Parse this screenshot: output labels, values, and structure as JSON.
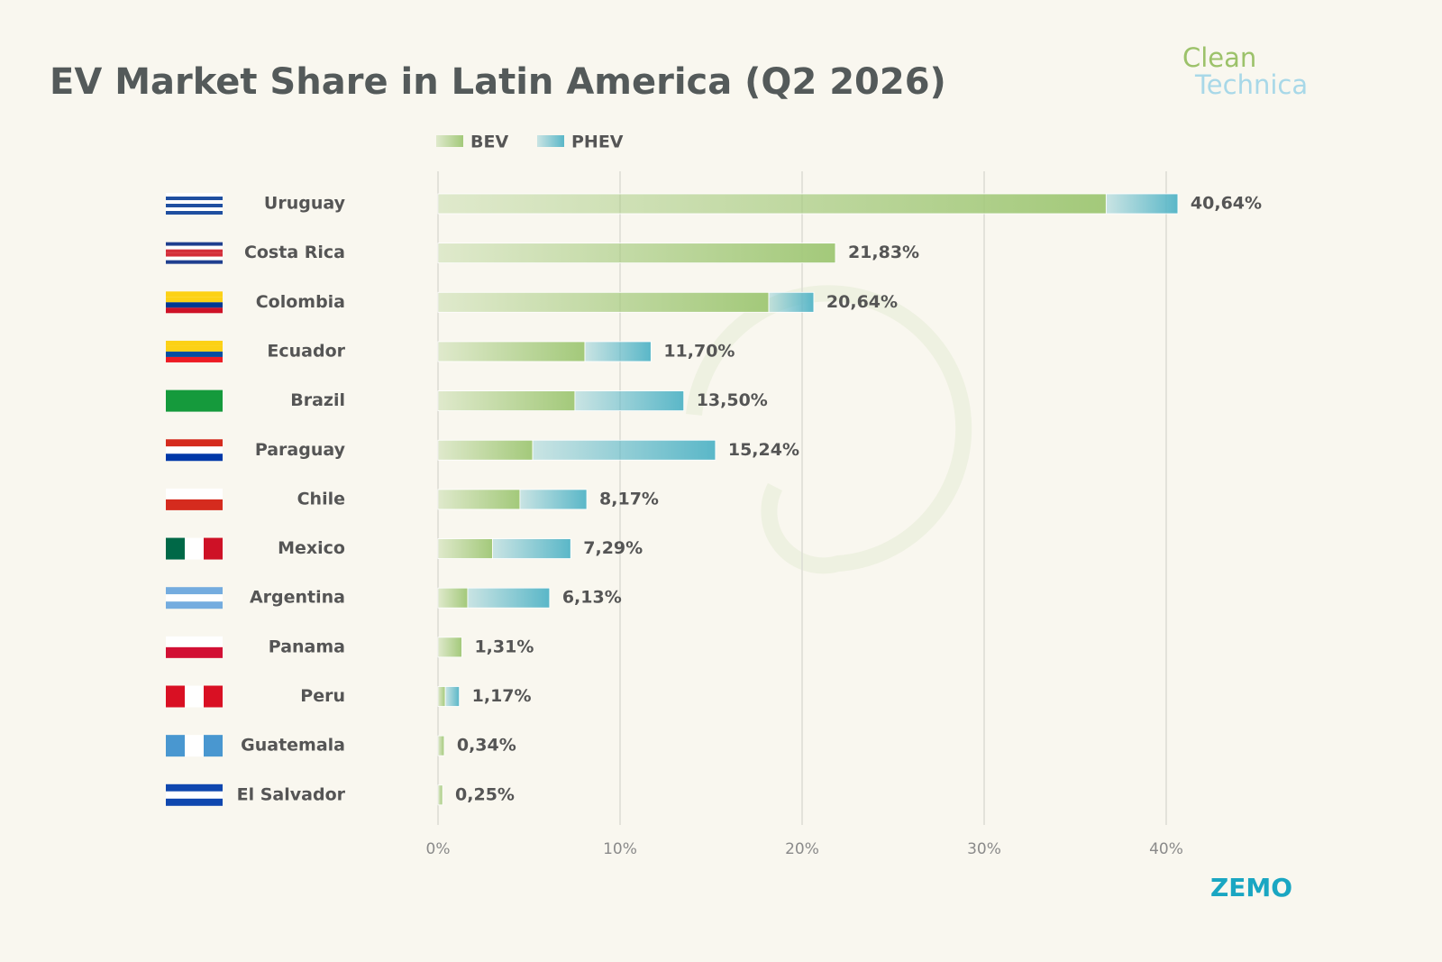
{
  "chart_data": {
    "type": "stacked-bar-horizontal",
    "title": "EV Market Share in Latin America (Q2 2026)",
    "brand": [
      "Clean",
      "Technica"
    ],
    "source_logo": "ZEMO",
    "categories": [
      "Uruguay",
      "Costa Rica",
      "Colombia",
      "Ecuador",
      "Brazil",
      "Paraguay",
      "Chile",
      "Mexico",
      "Argentina",
      "Panama",
      "Peru",
      "Guatemala",
      "El Salvador"
    ],
    "series": [
      {
        "name": "BEV",
        "color": "#a3c97a",
        "values": [
          36.7,
          21.83,
          18.17,
          8.07,
          7.52,
          5.2,
          4.5,
          3.0,
          1.63,
          1.31,
          0.4,
          0.34,
          0.25
        ]
      },
      {
        "name": "PHEV",
        "color": "#5ab7c8",
        "values": [
          3.94,
          0,
          2.47,
          3.63,
          5.98,
          10.04,
          3.67,
          4.29,
          4.5,
          0,
          0.77,
          0,
          0
        ]
      }
    ],
    "totals": [
      40.64,
      21.83,
      20.64,
      11.7,
      13.5,
      15.24,
      8.17,
      7.29,
      6.13,
      1.31,
      1.17,
      0.34,
      0.25
    ],
    "total_labels": [
      "40,64%",
      "21,83%",
      "20,64%",
      "11,70%",
      "13,50%",
      "15,24%",
      "8,17%",
      "7,29%",
      "6,13%",
      "1,31%",
      "1,17%",
      "0,34%",
      "0,25%"
    ],
    "xlim": [
      0,
      45
    ],
    "xticks": [
      {
        "value": 0,
        "label": "0%"
      },
      {
        "value": 10,
        "label": "10%"
      },
      {
        "value": 20,
        "label": "20%"
      },
      {
        "value": 30,
        "label": "30%"
      },
      {
        "value": 40,
        "label": "40%"
      }
    ],
    "grid": true
  }
}
